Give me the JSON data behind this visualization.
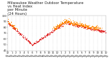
{
  "title": "Milwaukee Weather Outdoor Temperature\nvs Heat Index\nper Minute\n(24 Hours)",
  "title_fontsize": 3.8,
  "background_color": "#ffffff",
  "plot_bg_color": "#ffffff",
  "temp_color": "#dd1111",
  "heat_color": "#ff8800",
  "ylim": [
    40,
    100
  ],
  "xlim": [
    0,
    1440
  ],
  "x_tick_interval": 60,
  "y_ticks": [
    40,
    50,
    60,
    70,
    80,
    90,
    100
  ],
  "grid_color": "#bbbbbb",
  "tick_color": "#333333",
  "tick_fontsize": 2.8,
  "dot_size_temp": 0.35,
  "dot_size_heat": 0.45
}
